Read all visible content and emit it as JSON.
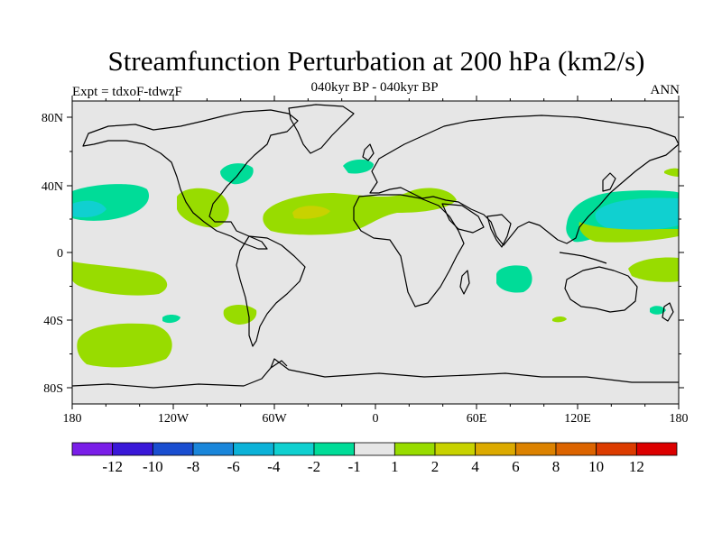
{
  "header": {
    "title": "Streamfunction Perturbation at 200 hPa (km2/s)",
    "subtitle": "040kyr BP - 040kyr BP",
    "left_label": "Expt = tdxoF-tdwzF",
    "right_label": "ANN"
  },
  "map": {
    "projection": "cylindrical equidistant",
    "background_color": "#e6e6e6",
    "lat_ticks": [
      "80N",
      "40N",
      "0",
      "40S",
      "80S"
    ],
    "lon_ticks": [
      "180",
      "120W",
      "60W",
      "0",
      "60E",
      "120E",
      "180"
    ]
  },
  "colorbar": {
    "colors": [
      "#7a1ee8",
      "#3a18d8",
      "#1a4ed0",
      "#1a86da",
      "#0cb2d8",
      "#10d0d0",
      "#00dc98",
      "#e6e6e6",
      "#98dc00",
      "#c8d200",
      "#dcaa00",
      "#dc8200",
      "#dc6400",
      "#dc3c00",
      "#dc0000"
    ],
    "labels": [
      "-12",
      "-10",
      "-8",
      "-6",
      "-4",
      "-2",
      "-1",
      "1",
      "2",
      "4",
      "6",
      "8",
      "10",
      "12"
    ]
  }
}
